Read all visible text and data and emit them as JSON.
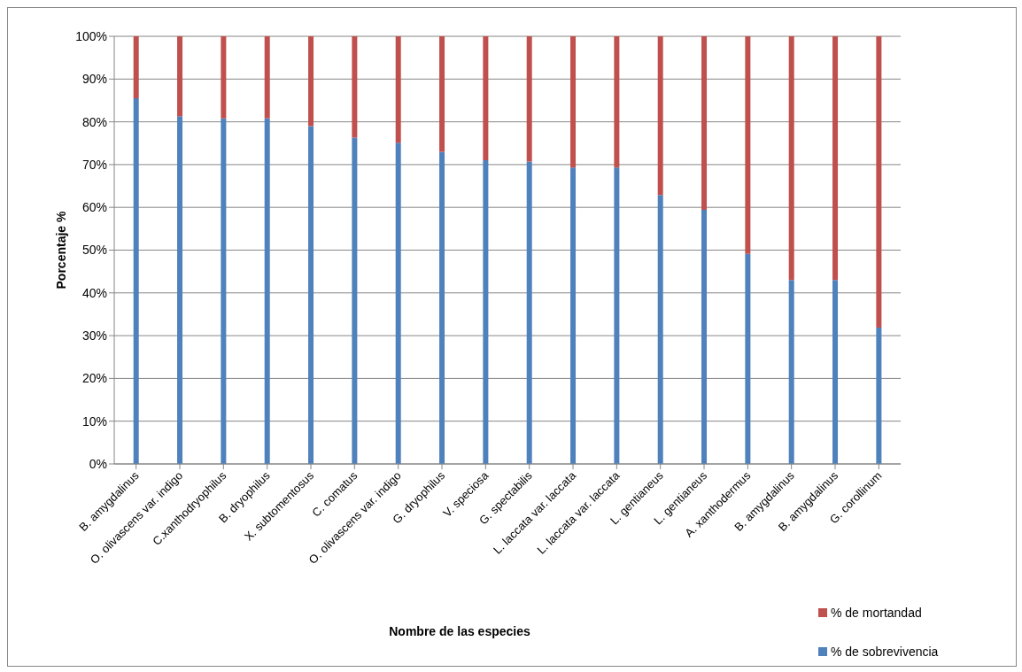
{
  "chart_data": {
    "type": "bar",
    "stacked": true,
    "xlabel": "Nombre de las especies",
    "ylabel": "Porcentaje %",
    "categories": [
      "B. amygdalinus",
      "O. olivascens var. indigo",
      "C.xanthodryophilus",
      "B. dryophilus",
      "X. subtomentosus",
      "C. comatus",
      "O. olivascens var. indigo",
      "G. dryophilus",
      "V. speciosa",
      "G. spectabilis",
      "L. laccata var. laccata",
      "L. laccata var. laccata",
      "L. gentianeus",
      "L. gentianeus",
      "A. xanthodermus",
      "B. amygdalinus",
      "B. amygdalinus",
      "G. corollinum"
    ],
    "series": [
      {
        "name": "% de sobrevivencia",
        "color": "#4f81bd",
        "values": [
          85.5,
          81.3,
          80.8,
          80.8,
          79.0,
          76.3,
          75.1,
          73.0,
          71.0,
          70.7,
          69.3,
          69.3,
          62.9,
          59.4,
          49.1,
          43.0,
          43.0,
          31.9
        ]
      },
      {
        "name": "% de mortandad",
        "color": "#c0504d",
        "values": [
          14.5,
          18.7,
          19.2,
          19.2,
          21.0,
          23.7,
          24.9,
          27.0,
          29.0,
          29.3,
          30.7,
          30.7,
          37.1,
          40.6,
          50.9,
          57.0,
          57.0,
          68.1
        ]
      }
    ],
    "ylim": [
      0,
      100
    ],
    "yticks": [
      {
        "value": 0,
        "label": "0%"
      },
      {
        "value": 10,
        "label": "10%"
      },
      {
        "value": 20,
        "label": "20%"
      },
      {
        "value": 30,
        "label": "30%"
      },
      {
        "value": 40,
        "label": "40%"
      },
      {
        "value": 50,
        "label": "50%"
      },
      {
        "value": 60,
        "label": "60%"
      },
      {
        "value": 70,
        "label": "70%"
      },
      {
        "value": 80,
        "label": "80%"
      },
      {
        "value": 90,
        "label": "90%"
      },
      {
        "value": 100,
        "label": "100%"
      }
    ],
    "grid": "y",
    "legend": "bottom right"
  }
}
